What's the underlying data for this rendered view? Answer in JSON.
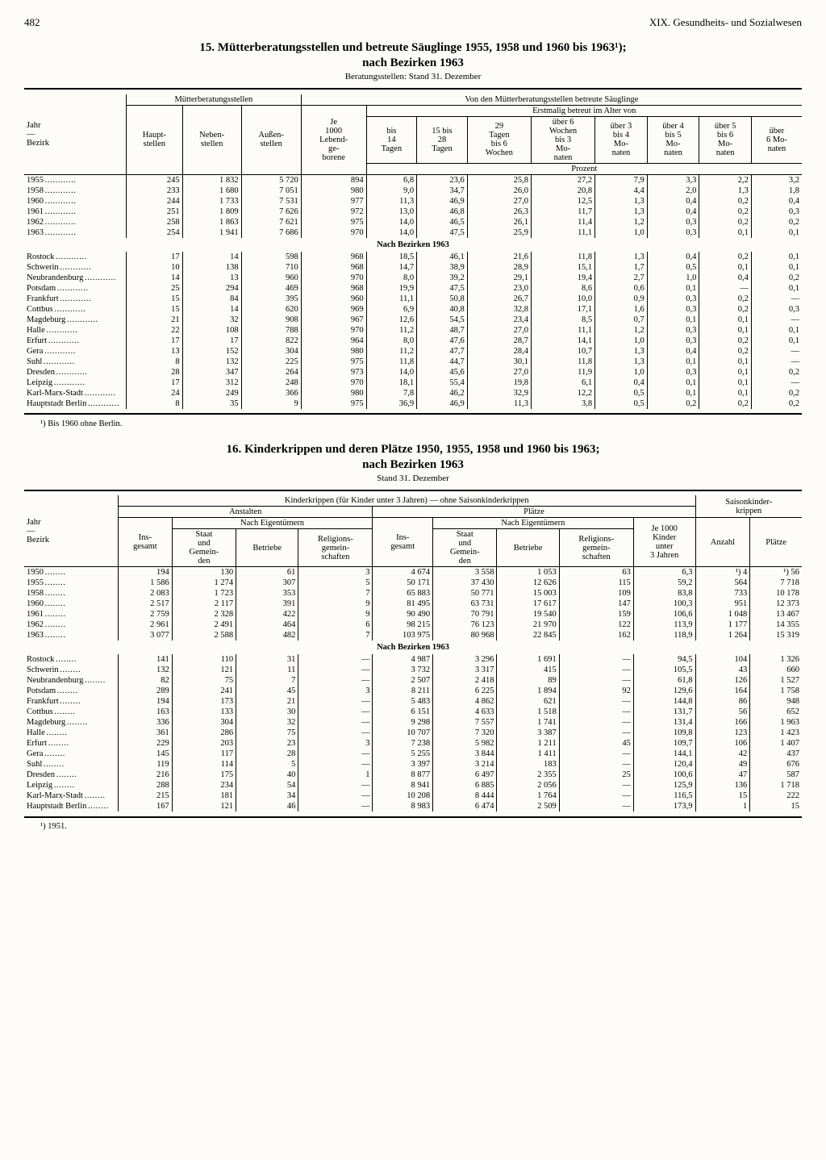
{
  "page_number": "482",
  "chapter": "XIX. Gesundheits- und Sozialwesen",
  "t15": {
    "title": "15. Mütterberatungsstellen und betreute Säuglinge 1955, 1958 und 1960 bis 1963¹);",
    "subtitle": "nach Bezirken 1963",
    "note": "Beratungsstellen: Stand 31. Dezember",
    "h_row1": "Jahr\n—\nBezirk",
    "h_group1": "Mütterberatungsstellen",
    "h_group2": "Von den Mütterberatungsstellen betreute Säuglinge",
    "h_haupt": "Haupt-\nstellen",
    "h_neben": "Neben-\nstellen",
    "h_aussen": "Außen-\nstellen",
    "h_je1000": "Je\n1000\nLebend-\nge-\nborene",
    "h_erst": "Erstmalig betreut im Alter von",
    "h_bis14": "bis\n14\nTagen",
    "h_15bis28": "15 bis\n28\nTagen",
    "h_29bis6": "29\nTagen\nbis 6\nWochen",
    "h_6wbis3m": "über 6\nWochen\nbis 3\nMo-\nnaten",
    "h_3bis4": "über 3\nbis 4\nMo-\nnaten",
    "h_4bis5": "über 4\nbis 5\nMo-\nnaten",
    "h_5bis6": "über 5\nbis 6\nMo-\nnaten",
    "h_u6": "über\n6 Mo-\nnaten",
    "h_prozent": "Prozent",
    "years": [
      {
        "l": "1955",
        "c": [
          "245",
          "1 832",
          "5 720",
          "894",
          "6,8",
          "23,6",
          "25,8",
          "27,2",
          "7,9",
          "3,3",
          "2,2",
          "3,2"
        ]
      },
      {
        "l": "1958",
        "c": [
          "233",
          "1 680",
          "7 051",
          "980",
          "9,0",
          "34,7",
          "26,0",
          "20,8",
          "4,4",
          "2,0",
          "1,3",
          "1,8"
        ]
      },
      {
        "l": "1960",
        "c": [
          "244",
          "1 733",
          "7 531",
          "977",
          "11,3",
          "46,9",
          "27,0",
          "12,5",
          "1,3",
          "0,4",
          "0,2",
          "0,4"
        ]
      },
      {
        "l": "1961",
        "c": [
          "251",
          "1 809",
          "7 626",
          "972",
          "13,0",
          "46,8",
          "26,3",
          "11,7",
          "1,3",
          "0,4",
          "0,2",
          "0,3"
        ]
      },
      {
        "l": "1962",
        "c": [
          "258",
          "1 863",
          "7 621",
          "975",
          "14,0",
          "46,5",
          "26,1",
          "11,4",
          "1,2",
          "0,3",
          "0,2",
          "0,2"
        ]
      },
      {
        "l": "1963",
        "c": [
          "254",
          "1 941",
          "7 686",
          "970",
          "14,0",
          "47,5",
          "25,9",
          "11,1",
          "1,0",
          "0,3",
          "0,1",
          "0,1"
        ]
      }
    ],
    "mid": "Nach Bezirken 1963",
    "bezirke": [
      {
        "l": "Rostock",
        "c": [
          "17",
          "14",
          "598",
          "968",
          "18,5",
          "46,1",
          "21,6",
          "11,8",
          "1,3",
          "0,4",
          "0,2",
          "0,1"
        ]
      },
      {
        "l": "Schwerin",
        "c": [
          "10",
          "138",
          "710",
          "968",
          "14,7",
          "38,9",
          "28,9",
          "15,1",
          "1,7",
          "0,5",
          "0,1",
          "0,1"
        ]
      },
      {
        "l": "Neubrandenburg",
        "c": [
          "14",
          "13",
          "960",
          "970",
          "8,0",
          "39,2",
          "29,1",
          "19,4",
          "2,7",
          "1,0",
          "0,4",
          "0,2"
        ]
      },
      {
        "l": "Potsdam",
        "c": [
          "25",
          "294",
          "469",
          "968",
          "19,9",
          "47,5",
          "23,0",
          "8,6",
          "0,6",
          "0,1",
          "—",
          "0,1"
        ]
      },
      {
        "l": "Frankfurt",
        "c": [
          "15",
          "84",
          "395",
          "960",
          "11,1",
          "50,8",
          "26,7",
          "10,0",
          "0,9",
          "0,3",
          "0,2",
          "—"
        ]
      },
      {
        "l": "Cottbus",
        "c": [
          "15",
          "14",
          "620",
          "969",
          "6,9",
          "40,8",
          "32,8",
          "17,1",
          "1,6",
          "0,3",
          "0,2",
          "0,3"
        ]
      },
      {
        "l": "Magdeburg",
        "c": [
          "21",
          "32",
          "908",
          "967",
          "12,6",
          "54,5",
          "23,4",
          "8,5",
          "0,7",
          "0,1",
          "0,1",
          "—"
        ]
      },
      {
        "l": "Halle",
        "c": [
          "22",
          "108",
          "788",
          "970",
          "11,2",
          "48,7",
          "27,0",
          "11,1",
          "1,2",
          "0,3",
          "0,1",
          "0,1"
        ]
      },
      {
        "l": "Erfurt",
        "c": [
          "17",
          "17",
          "822",
          "964",
          "8,0",
          "47,6",
          "28,7",
          "14,1",
          "1,0",
          "0,3",
          "0,2",
          "0,1"
        ]
      },
      {
        "l": "Gera",
        "c": [
          "13",
          "152",
          "304",
          "980",
          "11,2",
          "47,7",
          "28,4",
          "10,7",
          "1,3",
          "0,4",
          "0,2",
          "—"
        ]
      },
      {
        "l": "Suhl",
        "c": [
          "8",
          "132",
          "225",
          "975",
          "11,8",
          "44,7",
          "30,1",
          "11,8",
          "1,3",
          "0,1",
          "0,1",
          "—"
        ]
      },
      {
        "l": "Dresden",
        "c": [
          "28",
          "347",
          "264",
          "973",
          "14,0",
          "45,6",
          "27,0",
          "11,9",
          "1,0",
          "0,3",
          "0,1",
          "0,2"
        ]
      },
      {
        "l": "Leipzig",
        "c": [
          "17",
          "312",
          "248",
          "970",
          "18,1",
          "55,4",
          "19,8",
          "6,1",
          "0,4",
          "0,1",
          "0,1",
          "—"
        ]
      },
      {
        "l": "Karl-Marx-Stadt",
        "c": [
          "24",
          "249",
          "366",
          "980",
          "7,8",
          "46,2",
          "32,9",
          "12,2",
          "0,5",
          "0,1",
          "0,1",
          "0,2"
        ]
      },
      {
        "l": "Hauptstadt Berlin",
        "c": [
          "8",
          "35",
          "9",
          "975",
          "36,9",
          "46,9",
          "11,3",
          "3,8",
          "0,5",
          "0,2",
          "0,2",
          "0,2"
        ]
      }
    ],
    "footnote": "¹) Bis 1960 ohne Berlin."
  },
  "t16": {
    "title": "16. Kinderkrippen und deren Plätze 1950, 1955, 1958 und 1960 bis 1963;",
    "subtitle": "nach Bezirken 1963",
    "note": "Stand 31. Dezember",
    "h_row1": "Jahr\n—\nBezirk",
    "h_main": "Kinderkrippen (für Kinder unter 3 Jahren) — ohne Saisonkinderkrippen",
    "h_saison": "Saisonkinder-\nkrippen",
    "h_anst": "Anstalten",
    "h_platze": "Plätze",
    "h_nacheig": "Nach Eigentümern",
    "h_ins": "Ins-\ngesamt",
    "h_staat": "Staat\nund\nGemein-\nden",
    "h_betriebe": "Betriebe",
    "h_relig": "Religions-\ngemein-\nschaften",
    "h_je1000k": "Je 1000\nKinder\nunter\n3 Jahren",
    "h_anzahl": "Anzahl",
    "h_platze2": "Plätze",
    "years": [
      {
        "l": "1950",
        "c": [
          "194",
          "130",
          "61",
          "3",
          "4 674",
          "3 558",
          "1 053",
          "63",
          "6,3",
          "¹) 4",
          "¹) 56"
        ]
      },
      {
        "l": "1955",
        "c": [
          "1 586",
          "1 274",
          "307",
          "5",
          "50 171",
          "37 430",
          "12 626",
          "115",
          "59,2",
          "564",
          "7 718"
        ]
      },
      {
        "l": "1958",
        "c": [
          "2 083",
          "1 723",
          "353",
          "7",
          "65 883",
          "50 771",
          "15 003",
          "109",
          "83,8",
          "733",
          "10 178"
        ]
      },
      {
        "l": "1960",
        "c": [
          "2 517",
          "2 117",
          "391",
          "9",
          "81 495",
          "63 731",
          "17 617",
          "147",
          "100,3",
          "951",
          "12 373"
        ]
      },
      {
        "l": "1961",
        "c": [
          "2 759",
          "2 328",
          "422",
          "9",
          "90 490",
          "70 791",
          "19 540",
          "159",
          "106,6",
          "1 048",
          "13 467"
        ]
      },
      {
        "l": "1962",
        "c": [
          "2 961",
          "2 491",
          "464",
          "6",
          "98 215",
          "76 123",
          "21 970",
          "122",
          "113,9",
          "1 177",
          "14 355"
        ]
      },
      {
        "l": "1963",
        "c": [
          "3 077",
          "2 588",
          "482",
          "7",
          "103 975",
          "80 968",
          "22 845",
          "162",
          "118,9",
          "1 264",
          "15 319"
        ]
      }
    ],
    "mid": "Nach Bezirken 1963",
    "bezirke": [
      {
        "l": "Rostock",
        "c": [
          "141",
          "110",
          "31",
          "—",
          "4 987",
          "3 296",
          "1 691",
          "—",
          "94,5",
          "104",
          "1 326"
        ]
      },
      {
        "l": "Schwerin",
        "c": [
          "132",
          "121",
          "11",
          "—",
          "3 732",
          "3 317",
          "415",
          "—",
          "105,5",
          "43",
          "660"
        ]
      },
      {
        "l": "Neubrandenburg",
        "c": [
          "82",
          "75",
          "7",
          "—",
          "2 507",
          "2 418",
          "89",
          "—",
          "61,8",
          "126",
          "1 527"
        ]
      },
      {
        "l": "Potsdam",
        "c": [
          "289",
          "241",
          "45",
          "3",
          "8 211",
          "6 225",
          "1 894",
          "92",
          "129,6",
          "164",
          "1 758"
        ]
      },
      {
        "l": "Frankfurt",
        "c": [
          "194",
          "173",
          "21",
          "—",
          "5 483",
          "4 862",
          "621",
          "—",
          "144,8",
          "86",
          "948"
        ]
      },
      {
        "l": "Cottbus",
        "c": [
          "163",
          "133",
          "30",
          "—",
          "6 151",
          "4 633",
          "1 518",
          "—",
          "131,7",
          "56",
          "652"
        ]
      },
      {
        "l": "Magdeburg",
        "c": [
          "336",
          "304",
          "32",
          "—",
          "9 298",
          "7 557",
          "1 741",
          "—",
          "131,4",
          "166",
          "1 963"
        ]
      },
      {
        "l": "Halle",
        "c": [
          "361",
          "286",
          "75",
          "—",
          "10 707",
          "7 320",
          "3 387",
          "—",
          "109,8",
          "123",
          "1 423"
        ]
      },
      {
        "l": "Erfurt",
        "c": [
          "229",
          "203",
          "23",
          "3",
          "7 238",
          "5 982",
          "1 211",
          "45",
          "109,7",
          "106",
          "1 407"
        ]
      },
      {
        "l": "Gera",
        "c": [
          "145",
          "117",
          "28",
          "—",
          "5 255",
          "3 844",
          "1 411",
          "—",
          "144,1",
          "42",
          "437"
        ]
      },
      {
        "l": "Suhl",
        "c": [
          "119",
          "114",
          "5",
          "—",
          "3 397",
          "3 214",
          "183",
          "—",
          "120,4",
          "49",
          "676"
        ]
      },
      {
        "l": "Dresden",
        "c": [
          "216",
          "175",
          "40",
          "1",
          "8 877",
          "6 497",
          "2 355",
          "25",
          "100,6",
          "47",
          "587"
        ]
      },
      {
        "l": "Leipzig",
        "c": [
          "288",
          "234",
          "54",
          "—",
          "8 941",
          "6 885",
          "2 056",
          "—",
          "125,9",
          "136",
          "1 718"
        ]
      },
      {
        "l": "Karl-Marx-Stadt",
        "c": [
          "215",
          "181",
          "34",
          "—",
          "10 208",
          "8 444",
          "1 764",
          "—",
          "116,5",
          "15",
          "222"
        ]
      },
      {
        "l": "Hauptstadt Berlin",
        "c": [
          "167",
          "121",
          "46",
          "—",
          "8 983",
          "6 474",
          "2 509",
          "—",
          "173,9",
          "1",
          "15"
        ]
      }
    ],
    "footnote": "¹) 1951."
  }
}
